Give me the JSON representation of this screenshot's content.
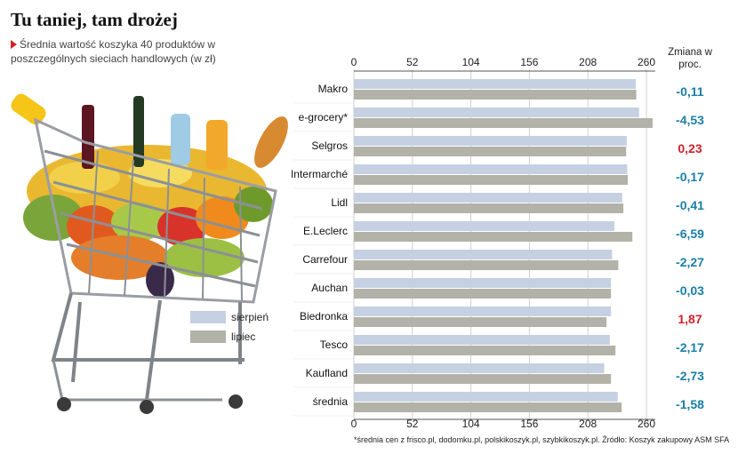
{
  "header": {
    "title": "Tu taniej, tam drożej",
    "subtitle": "Średnia wartość koszyka 40 produktów w poszczególnych sieciach handlowych (w zł)"
  },
  "change_header": "Zmiana w proc.",
  "footnote": "*średnia cen z frisco.pl, dodomku.pl, polskikoszyk.pl, szybkikoszyk.pl. Źródło: Koszyk zakupowy ASM SFA",
  "colors": {
    "sierpien": "#c5d1e2",
    "lipiec": "#b3b2a8",
    "negative": "#1a7fa6",
    "positive": "#d32027"
  },
  "chart_data": {
    "type": "bar",
    "orientation": "horizontal",
    "categories": [
      "Makro",
      "e-grocery*",
      "Selgros",
      "Intermarché",
      "Lidl",
      "E.Leclerc",
      "Carrefour",
      "Auchan",
      "Biedronka",
      "Tesco",
      "Kaufland",
      "średnia"
    ],
    "series": [
      {
        "name": "sierpień",
        "values": [
          250.5,
          253.5,
          242.5,
          243.0,
          238.5,
          231.5,
          229.5,
          228.5,
          228.5,
          227.5,
          222.5,
          234.5
        ]
      },
      {
        "name": "lipiec",
        "values": [
          251.0,
          265.5,
          242.0,
          243.5,
          239.5,
          247.5,
          235.0,
          228.5,
          224.5,
          232.5,
          228.5,
          238.0
        ]
      }
    ],
    "change_pct": [
      "-0,11",
      "-4,53",
      "0,23",
      "-0,17",
      "-0,41",
      "-6,59",
      "-2,27",
      "-0,03",
      "1,87",
      "-2,17",
      "-2,73",
      "-1,58"
    ],
    "change_sign": [
      -1,
      -1,
      1,
      -1,
      -1,
      -1,
      -1,
      -1,
      1,
      -1,
      -1,
      -1
    ],
    "xticks": [
      0,
      52,
      104,
      156,
      208,
      260
    ],
    "xlim": [
      0,
      260
    ],
    "grid": true,
    "legend": "left"
  }
}
